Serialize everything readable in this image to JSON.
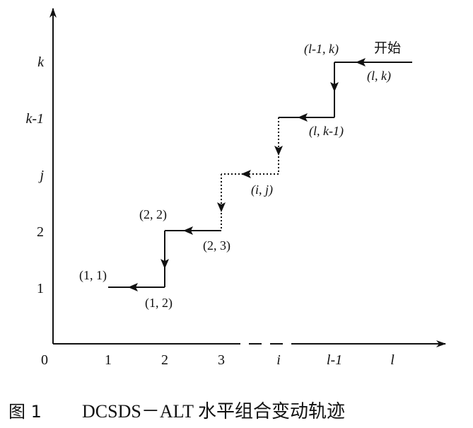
{
  "origin_label": "0",
  "x_ticks": [
    {
      "text": "1",
      "italic": false
    },
    {
      "text": "2",
      "italic": false
    },
    {
      "text": "3",
      "italic": false
    },
    {
      "text": "i",
      "italic": true
    },
    {
      "text": "l-1",
      "italic": true
    },
    {
      "text": "l",
      "italic": true
    }
  ],
  "y_ticks": [
    {
      "text": "1",
      "italic": false
    },
    {
      "text": "2",
      "italic": false
    },
    {
      "text": "j",
      "italic": true
    },
    {
      "text": "k-1",
      "italic": true
    },
    {
      "text": "k",
      "italic": true
    }
  ],
  "point_labels": {
    "p11": "(1, 1)",
    "p12": "(1, 2)",
    "p22": "(2, 2)",
    "p23": "(2, 3)",
    "pij": "(i, j)",
    "plk1": "(l, k-1)",
    "pl1k": "(l-1, k)",
    "plk": "(l, k)"
  },
  "start_label": "开始",
  "caption": {
    "figure_number": "图 1",
    "text": "DCSDS－ALT 水平组合变动轨迹"
  }
}
